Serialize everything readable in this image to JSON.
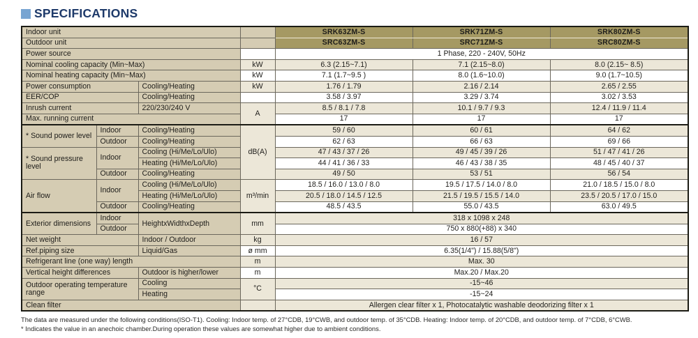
{
  "title": {
    "label": "SPECIFICATIONS"
  },
  "colors": {
    "accent_square": "#78a5d2",
    "title_text": "#1e3a6a",
    "model_header_bg": "#a59963",
    "label_cell_bg": "#d5ccb3",
    "stripe_row_bg": "#ece7d8"
  },
  "table": {
    "models": [
      "SRK63ZM-S",
      "SRK71ZM-S",
      "SRK80ZM-S"
    ],
    "rows": [
      {
        "s": "h",
        "cells": [
          {
            "t": "Indoor unit",
            "k": "label",
            "cs": 3
          },
          {
            "t": "",
            "k": "unit",
            "bg": "l"
          },
          {
            "t": "SRK63ZM-S",
            "k": "model"
          },
          {
            "t": "SRK71ZM-S",
            "k": "model"
          },
          {
            "t": "SRK80ZM-S",
            "k": "model"
          }
        ]
      },
      {
        "s": "h",
        "cells": [
          {
            "t": "Outdoor unit",
            "k": "label",
            "cs": 3
          },
          {
            "t": "",
            "k": "unit",
            "bg": "l"
          },
          {
            "t": "SRC63ZM-S",
            "k": "model"
          },
          {
            "t": "SRC71ZM-S",
            "k": "model"
          },
          {
            "t": "SRC80ZM-S",
            "k": "model"
          }
        ]
      },
      {
        "s": "w",
        "cells": [
          {
            "t": "Power source",
            "k": "label",
            "cs": 3
          },
          {
            "t": "",
            "k": "unit"
          },
          {
            "t": "1 Phase, 220 - 240V, 50Hz",
            "k": "value",
            "cs": 3
          }
        ]
      },
      {
        "s": "b",
        "cells": [
          {
            "t": "Nominal cooling capacity (Min~Max)",
            "k": "label",
            "cs": 3
          },
          {
            "t": "kW",
            "k": "unit"
          },
          {
            "t": "6.3 (2.15~7.1)",
            "k": "value"
          },
          {
            "t": "7.1 (2.15~8.0)",
            "k": "value"
          },
          {
            "t": "8.0 (2.15~ 8.5)",
            "k": "value"
          }
        ]
      },
      {
        "s": "w",
        "cells": [
          {
            "t": "Nominal heating capacity (Min~Max)",
            "k": "label",
            "cs": 3
          },
          {
            "t": "kW",
            "k": "unit"
          },
          {
            "t": "7.1 (1.7~9.5 )",
            "k": "value"
          },
          {
            "t": "8.0 (1.6~10.0)",
            "k": "value"
          },
          {
            "t": "9.0 (1.7~10.5)",
            "k": "value"
          }
        ]
      },
      {
        "s": "b",
        "cells": [
          {
            "t": "Power consumption",
            "k": "label",
            "cs": 2
          },
          {
            "t": "Cooling/Heating",
            "k": "label"
          },
          {
            "t": "kW",
            "k": "unit"
          },
          {
            "t": "1.76 / 1.79",
            "k": "value"
          },
          {
            "t": "2.16 / 2.14",
            "k": "value"
          },
          {
            "t": "2.65 / 2.55",
            "k": "value"
          }
        ]
      },
      {
        "s": "w",
        "cells": [
          {
            "t": "EER/COP",
            "k": "label",
            "cs": 2
          },
          {
            "t": "Cooling/Heating",
            "k": "label"
          },
          {
            "t": "",
            "k": "unit"
          },
          {
            "t": "3.58 / 3.97",
            "k": "value"
          },
          {
            "t": "3.29 / 3.74",
            "k": "value"
          },
          {
            "t": "3.02 / 3.53",
            "k": "value"
          }
        ]
      },
      {
        "s": "b",
        "cells": [
          {
            "t": "Inrush current",
            "k": "label",
            "cs": 2
          },
          {
            "t": "220/230/240 V",
            "k": "label"
          },
          {
            "t": "A",
            "k": "unit",
            "rs": 2,
            "bg": "b"
          },
          {
            "t": "8.5 / 8.1 / 7.8",
            "k": "value"
          },
          {
            "t": "10.1 / 9.7 / 9.3",
            "k": "value"
          },
          {
            "t": "12.4 / 11.9 / 11.4",
            "k": "value"
          }
        ]
      },
      {
        "s": "w",
        "cells": [
          {
            "t": "Max. running current",
            "k": "label",
            "cs": 3
          },
          {
            "t": "17",
            "k": "value"
          },
          {
            "t": "17",
            "k": "value"
          },
          {
            "t": "17",
            "k": "value"
          }
        ]
      },
      {
        "s": "b",
        "top": 1,
        "cells": [
          {
            "t": "* Sound power level",
            "k": "label",
            "rs": 2,
            "wrap": 1
          },
          {
            "t": "Indoor",
            "k": "label"
          },
          {
            "t": "Cooling/Heating",
            "k": "label"
          },
          {
            "t": "dB(A)",
            "k": "unit",
            "rs": 5,
            "bg": "b"
          },
          {
            "t": "59 / 60",
            "k": "value"
          },
          {
            "t": "60 / 61",
            "k": "value"
          },
          {
            "t": "64 / 62",
            "k": "value"
          }
        ]
      },
      {
        "s": "w",
        "cells": [
          {
            "t": "Outdoor",
            "k": "label"
          },
          {
            "t": "Cooling/Heating",
            "k": "label"
          },
          {
            "t": "62 / 63",
            "k": "value"
          },
          {
            "t": "66 / 63",
            "k": "value"
          },
          {
            "t": "69 / 66",
            "k": "value"
          }
        ]
      },
      {
        "s": "b",
        "cells": [
          {
            "t": "* Sound pressure level",
            "k": "label",
            "rs": 3,
            "wrap": 1
          },
          {
            "t": "Indoor",
            "k": "label",
            "rs": 2
          },
          {
            "t": "Cooling (Hi/Me/Lo/Ulo)",
            "k": "label"
          },
          {
            "t": "47 / 43 / 37 / 26",
            "k": "value"
          },
          {
            "t": "49 / 45 / 39 / 26",
            "k": "value"
          },
          {
            "t": "51 / 47 / 41 / 26",
            "k": "value"
          }
        ]
      },
      {
        "s": "w",
        "cells": [
          {
            "t": "Heating (Hi/Me/Lo/Ulo)",
            "k": "label"
          },
          {
            "t": "44 / 41 / 36 / 33",
            "k": "value"
          },
          {
            "t": "46 / 43 / 38 / 35",
            "k": "value"
          },
          {
            "t": "48 / 45 / 40 / 37",
            "k": "value"
          }
        ]
      },
      {
        "s": "b",
        "cells": [
          {
            "t": "Outdoor",
            "k": "label"
          },
          {
            "t": "Cooling/Heating",
            "k": "label"
          },
          {
            "t": "49 / 50",
            "k": "value"
          },
          {
            "t": "53 / 51",
            "k": "value"
          },
          {
            "t": "56 / 54",
            "k": "value"
          }
        ]
      },
      {
        "s": "w",
        "cells": [
          {
            "t": "Air flow",
            "k": "label",
            "rs": 3
          },
          {
            "t": "Indoor",
            "k": "label",
            "rs": 2
          },
          {
            "t": "Cooling (Hi/Me/Lo/Ulo)",
            "k": "label"
          },
          {
            "t": "m³/min",
            "k": "unit",
            "rs": 3,
            "bg": "b"
          },
          {
            "t": "18.5 / 16.0 / 13.0 / 8.0",
            "k": "value"
          },
          {
            "t": "19.5 / 17.5 / 14.0 / 8.0",
            "k": "value"
          },
          {
            "t": "21.0 / 18.5 / 15.0 / 8.0",
            "k": "value"
          }
        ]
      },
      {
        "s": "b",
        "cells": [
          {
            "t": "Heating (Hi/Me/Lo/Ulo)",
            "k": "label"
          },
          {
            "t": "20.5 / 18.0 / 14.5 / 12.5",
            "k": "value"
          },
          {
            "t": "21.5 / 19.5 / 15.5 / 14.0",
            "k": "value"
          },
          {
            "t": "23.5 / 20.5 / 17.0 / 15.0",
            "k": "value"
          }
        ]
      },
      {
        "s": "w",
        "cells": [
          {
            "t": "Outdoor",
            "k": "label"
          },
          {
            "t": "Cooling/Heating",
            "k": "label"
          },
          {
            "t": "48.5 / 43.5",
            "k": "value"
          },
          {
            "t": "55.0 / 43.5",
            "k": "value"
          },
          {
            "t": "63.0 / 49.5",
            "k": "value"
          }
        ]
      },
      {
        "s": "b",
        "top": 1,
        "cells": [
          {
            "t": "Exterior dimensions",
            "k": "label",
            "rs": 2,
            "wrap": 1
          },
          {
            "t": "Indoor",
            "k": "label"
          },
          {
            "t": "HeightxWidthxDepth",
            "k": "label",
            "rs": 2
          },
          {
            "t": "mm",
            "k": "unit",
            "rs": 2,
            "bg": "b"
          },
          {
            "t": "318 x 1098 x 248",
            "k": "value",
            "cs": 3
          }
        ]
      },
      {
        "s": "w",
        "cells": [
          {
            "t": "Outdoor",
            "k": "label"
          },
          {
            "t": "750 x 880(+88) x 340",
            "k": "value",
            "cs": 3
          }
        ]
      },
      {
        "s": "b",
        "cells": [
          {
            "t": "Net weight",
            "k": "label",
            "cs": 2
          },
          {
            "t": "Indoor / Outdoor",
            "k": "label"
          },
          {
            "t": "kg",
            "k": "unit"
          },
          {
            "t": "16 / 57",
            "k": "value",
            "cs": 3
          }
        ]
      },
      {
        "s": "w",
        "cells": [
          {
            "t": "Ref.piping size",
            "k": "label",
            "cs": 2
          },
          {
            "t": "Liquid/Gas",
            "k": "label"
          },
          {
            "t": "ø mm",
            "k": "unit"
          },
          {
            "t": "6.35(1/4\") / 15.88(5/8\")",
            "k": "value",
            "cs": 3
          }
        ]
      },
      {
        "s": "b",
        "cells": [
          {
            "t": "Refrigerant line (one way) length",
            "k": "label",
            "cs": 3
          },
          {
            "t": "m",
            "k": "unit"
          },
          {
            "t": "Max. 30",
            "k": "value",
            "cs": 3
          }
        ]
      },
      {
        "s": "w",
        "cells": [
          {
            "t": "Vertical height differences",
            "k": "label",
            "cs": 2
          },
          {
            "t": "Outdoor is higher/lower",
            "k": "label"
          },
          {
            "t": "m",
            "k": "unit"
          },
          {
            "t": "Max.20 / Max.20",
            "k": "value",
            "cs": 3
          }
        ]
      },
      {
        "s": "b",
        "cells": [
          {
            "t": "Outdoor operating temperature range",
            "k": "label",
            "cs": 2,
            "rs": 2,
            "wrap": 1
          },
          {
            "t": "Cooling",
            "k": "label"
          },
          {
            "t": "°C",
            "k": "unit",
            "rs": 2,
            "bg": "b"
          },
          {
            "t": "-15~46",
            "k": "value",
            "cs": 3
          }
        ]
      },
      {
        "s": "w",
        "cells": [
          {
            "t": "Heating",
            "k": "label"
          },
          {
            "t": "-15~24",
            "k": "value",
            "cs": 3
          }
        ]
      },
      {
        "s": "b",
        "cells": [
          {
            "t": "Clean filter",
            "k": "label",
            "cs": 3
          },
          {
            "t": "",
            "k": "unit",
            "bg": "b"
          },
          {
            "t": "Allergen clear filter x 1, Photocatalytic washable deodorizing filter x 1",
            "k": "value",
            "cs": 3
          }
        ]
      }
    ]
  },
  "footnotes": {
    "line1": "The data are measured under the following conditions(ISO-T1).  Cooling: Indoor temp. of 27°CDB, 19°CWB, and outdoor temp. of 35°CDB.   Heating: Indoor temp. of 20°CDB, and outdoor temp. of 7°CDB, 6°CWB.",
    "line2": "*  Indicates  the  value in an anechoic chamber.During operation  these  values  are  somewhat  higher due to ambient conditions."
  }
}
